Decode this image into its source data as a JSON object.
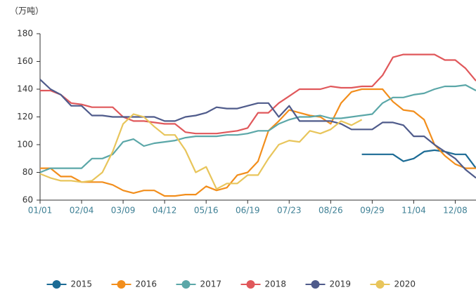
{
  "chart_data": {
    "type": "line",
    "y_unit": "（万吨）",
    "categories": [
      "01/01",
      null,
      null,
      null,
      "02/04",
      null,
      null,
      null,
      "03/09",
      null,
      null,
      null,
      "04/12",
      null,
      null,
      null,
      "05/16",
      null,
      null,
      null,
      "06/19",
      null,
      null,
      null,
      "07/23",
      null,
      null,
      null,
      "08/26",
      null,
      null,
      null,
      "09/29",
      null,
      null,
      null,
      "11/04",
      null,
      null,
      null,
      "12/08",
      null,
      null
    ],
    "ylim": [
      60,
      180
    ],
    "yticks": [
      60,
      80,
      100,
      120,
      140,
      160,
      180
    ],
    "grid": false,
    "legend": "bottom",
    "series": [
      {
        "name": "2015",
        "color": "#1c6b95",
        "values": [
          null,
          null,
          null,
          null,
          null,
          null,
          null,
          null,
          null,
          null,
          null,
          null,
          null,
          null,
          null,
          null,
          null,
          null,
          null,
          null,
          null,
          null,
          null,
          null,
          null,
          null,
          null,
          null,
          null,
          null,
          null,
          93,
          93,
          93,
          93,
          88,
          90,
          95,
          96,
          95,
          93,
          93,
          83
        ]
      },
      {
        "name": "2016",
        "color": "#f28e1c",
        "values": [
          83,
          83,
          77,
          77,
          73,
          73,
          73,
          71,
          67,
          65,
          67,
          67,
          63,
          63,
          64,
          64,
          70,
          67,
          69,
          78,
          80,
          88,
          110,
          117,
          125,
          123,
          121,
          120,
          115,
          130,
          138,
          140,
          140,
          140,
          131,
          125,
          124,
          118,
          100,
          92,
          86,
          83,
          83
        ]
      },
      {
        "name": "2017",
        "color": "#5ba7a8",
        "values": [
          80,
          83,
          83,
          83,
          83,
          90,
          90,
          93,
          102,
          104,
          99,
          101,
          102,
          103,
          105,
          106,
          106,
          106,
          107,
          107,
          108,
          110,
          110,
          115,
          118,
          120,
          120,
          121,
          119,
          119,
          120,
          121,
          122,
          130,
          134,
          134,
          136,
          137,
          140,
          142,
          142,
          143,
          139
        ]
      },
      {
        "name": "2018",
        "color": "#e0585b",
        "values": [
          139,
          139,
          136,
          130,
          129,
          127,
          127,
          127,
          120,
          117,
          117,
          116,
          115,
          115,
          109,
          108,
          108,
          108,
          109,
          110,
          112,
          123,
          123,
          130,
          135,
          140,
          140,
          140,
          142,
          141,
          141,
          142,
          142,
          150,
          163,
          165,
          165,
          165,
          165,
          161,
          161,
          155,
          146
        ]
      },
      {
        "name": "2019",
        "color": "#4f5b8b",
        "values": [
          147,
          140,
          136,
          128,
          128,
          121,
          121,
          120,
          120,
          120,
          120,
          120,
          117,
          117,
          120,
          121,
          123,
          127,
          126,
          126,
          128,
          130,
          130,
          120,
          128,
          117,
          117,
          117,
          117,
          115,
          111,
          111,
          111,
          116,
          116,
          114,
          106,
          106,
          100,
          95,
          90,
          82,
          76
        ]
      },
      {
        "name": "2020",
        "color": "#e8c55b",
        "values": [
          79,
          76,
          74,
          74,
          73,
          74,
          80,
          95,
          115,
          122,
          120,
          113,
          107,
          107,
          96,
          80,
          84,
          68,
          72,
          72,
          78,
          78,
          90,
          100,
          103,
          102,
          110,
          108,
          111,
          117,
          114,
          118,
          null,
          null,
          null,
          null,
          null,
          null,
          null,
          null,
          null,
          null,
          null
        ]
      }
    ]
  }
}
